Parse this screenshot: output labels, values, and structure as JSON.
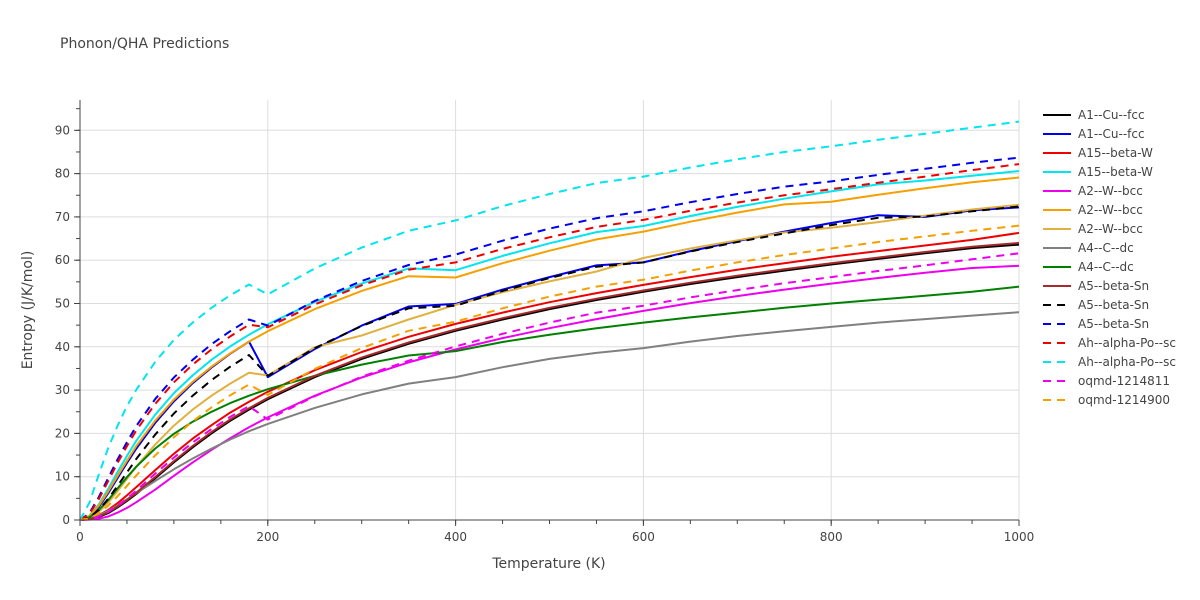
{
  "chart_data": {
    "type": "line",
    "title": "Phonon/QHA Predictions",
    "xlabel": "Temperature (K)",
    "ylabel": "Entropy (J/K/mol)",
    "xlim": [
      0,
      1000
    ],
    "ylim": [
      0,
      97
    ],
    "xticks": [
      0,
      200,
      400,
      600,
      800,
      1000
    ],
    "yticks": [
      0,
      10,
      20,
      30,
      40,
      50,
      60,
      70,
      80,
      90
    ],
    "grid": true,
    "legend_position": "right",
    "x": [
      0,
      10,
      20,
      30,
      40,
      50,
      60,
      80,
      100,
      120,
      140,
      160,
      180,
      200,
      250,
      300,
      350,
      400,
      450,
      500,
      550,
      600,
      650,
      700,
      750,
      800,
      850,
      900,
      950,
      1000
    ],
    "series": [
      {
        "name": "A1--Cu--fcc",
        "color": "#000000",
        "dash": "solid",
        "values": [
          0,
          0.2,
          0.7,
          1.6,
          2.9,
          4.4,
          6.0,
          9.6,
          13.3,
          16.8,
          20.0,
          22.9,
          25.5,
          27.9,
          33.0,
          37.2,
          40.7,
          43.7,
          46.3,
          48.7,
          50.8,
          52.7,
          54.5,
          56.1,
          57.6,
          59.0,
          60.3,
          61.6,
          62.8,
          63.6
        ]
      },
      {
        "name": "A1--Cu--fcc",
        "color": "#0000ee",
        "dash": "solid",
        "values": [
          0,
          0.8,
          3.0,
          6.2,
          9.7,
          13.2,
          16.5,
          22.4,
          27.4,
          31.6,
          35.2,
          38.4,
          41.2,
          33.0,
          39.5,
          44.9,
          49.3,
          49.9,
          53.2,
          56.1,
          58.8,
          59.5,
          62.1,
          64.4,
          66.6,
          68.6,
          70.4,
          70.0,
          71.5,
          72.2
        ]
      },
      {
        "name": "A15--beta-W",
        "color": "#ee0000",
        "dash": "solid",
        "values": [
          0,
          0.3,
          1.1,
          2.3,
          3.9,
          5.7,
          7.6,
          11.5,
          15.3,
          18.8,
          21.9,
          24.8,
          27.3,
          29.6,
          34.6,
          38.8,
          42.3,
          45.3,
          47.9,
          50.3,
          52.4,
          54.3,
          56.1,
          57.8,
          59.3,
          60.8,
          62.1,
          63.4,
          64.7,
          66.3
        ]
      },
      {
        "name": "A15--beta-W",
        "color": "#00e5ee",
        "dash": "solid",
        "values": [
          0,
          1.0,
          3.6,
          7.2,
          11.1,
          14.8,
          18.3,
          24.3,
          29.3,
          33.4,
          37.0,
          40.1,
          42.8,
          45.2,
          50.4,
          54.6,
          58.1,
          57.7,
          61.0,
          63.9,
          66.5,
          67.9,
          70.2,
          72.3,
          74.2,
          75.9,
          77.5,
          78.4,
          79.5,
          80.6
        ]
      },
      {
        "name": "A2--W--bcc",
        "color": "#ee00ee",
        "dash": "solid",
        "values": [
          0,
          0.1,
          0.3,
          0.8,
          1.7,
          2.8,
          4.1,
          7.0,
          10.2,
          13.3,
          16.2,
          18.9,
          21.4,
          23.7,
          28.7,
          32.9,
          36.4,
          39.4,
          42.0,
          44.3,
          46.4,
          48.3,
          50.1,
          51.7,
          53.2,
          54.6,
          55.9,
          57.1,
          58.2,
          58.7
        ]
      },
      {
        "name": "A2--W--bcc",
        "color": "#f5a000",
        "dash": "solid",
        "values": [
          0,
          0.9,
          3.3,
          6.6,
          10.2,
          13.7,
          17.1,
          22.9,
          27.8,
          31.9,
          35.4,
          38.5,
          41.2,
          43.6,
          48.7,
          52.9,
          56.3,
          56.0,
          59.3,
          62.2,
          64.8,
          66.6,
          68.9,
          71.0,
          72.9,
          73.5,
          75.1,
          76.6,
          78.0,
          79.1
        ]
      },
      {
        "name": "A2--W--bcc",
        "color": "#e0b040",
        "dash": "solid",
        "values": [
          0,
          0.5,
          1.9,
          4.0,
          6.7,
          9.5,
          12.3,
          17.4,
          21.8,
          25.5,
          28.7,
          31.5,
          34.0,
          33.4,
          39.9,
          42.6,
          46.3,
          49.7,
          52.6,
          55.1,
          57.4,
          60.5,
          62.7,
          64.6,
          66.4,
          67.5,
          68.8,
          70.3,
          71.7,
          72.8
        ]
      },
      {
        "name": "A4--C--dc",
        "color": "#808080",
        "dash": "solid",
        "values": [
          0,
          0.3,
          1.0,
          2.1,
          3.4,
          4.8,
          6.2,
          9.0,
          11.7,
          14.2,
          16.5,
          18.6,
          20.5,
          22.2,
          25.9,
          29.0,
          31.5,
          33.0,
          35.3,
          37.2,
          38.6,
          39.7,
          41.2,
          42.5,
          43.6,
          44.6,
          45.6,
          46.4,
          47.2,
          48.0
        ]
      },
      {
        "name": "A4--C--dc",
        "color": "#008000",
        "dash": "solid",
        "values": [
          0,
          0.6,
          2.3,
          4.6,
          7.3,
          9.9,
          12.3,
          16.5,
          19.9,
          22.7,
          25.0,
          27.0,
          28.7,
          30.2,
          33.3,
          35.9,
          38.0,
          39.0,
          41.1,
          42.8,
          44.3,
          45.6,
          46.8,
          47.9,
          49.0,
          50.0,
          50.9,
          51.8,
          52.7,
          53.9
        ]
      },
      {
        "name": "A5--beta-Sn",
        "color": "#a52a2a",
        "dash": "solid",
        "values": [
          0,
          0.2,
          0.8,
          1.8,
          3.1,
          4.6,
          6.3,
          9.9,
          13.6,
          17.1,
          20.3,
          23.2,
          25.8,
          28.2,
          33.3,
          37.5,
          41.0,
          44.0,
          46.6,
          49.0,
          51.1,
          53.0,
          54.8,
          56.4,
          57.9,
          59.3,
          60.6,
          61.9,
          63.1,
          64.0
        ]
      },
      {
        "name": "A5--beta-Sn",
        "color": "#000000",
        "dash": "dash",
        "values": [
          0,
          0.6,
          2.3,
          4.9,
          7.9,
          11.0,
          14.1,
          19.7,
          24.6,
          28.7,
          32.3,
          35.4,
          38.1,
          33.3,
          39.7,
          44.8,
          48.9,
          49.5,
          52.9,
          55.9,
          58.5,
          59.5,
          62.0,
          64.2,
          66.2,
          68.1,
          69.8,
          70.1,
          71.3,
          72.4
        ]
      },
      {
        "name": "A5--beta-Sn",
        "color": "#0000ee",
        "dash": "dash",
        "values": [
          0,
          1.6,
          5.3,
          9.7,
          14.0,
          18.0,
          21.7,
          27.9,
          32.9,
          37.0,
          40.6,
          43.6,
          46.3,
          44.9,
          50.6,
          55.2,
          58.9,
          61.3,
          64.5,
          67.3,
          69.7,
          71.3,
          73.4,
          75.3,
          77.0,
          78.2,
          79.7,
          81.1,
          82.5,
          83.7
        ]
      },
      {
        "name": "Ah--alpha-Po--sc",
        "color": "#ee0000",
        "dash": "dash",
        "values": [
          0,
          1.4,
          4.8,
          9.0,
          13.2,
          17.1,
          20.7,
          26.8,
          31.8,
          35.9,
          39.4,
          42.4,
          45.1,
          44.5,
          49.8,
          54.2,
          57.8,
          59.5,
          62.6,
          65.3,
          67.7,
          69.3,
          71.4,
          73.3,
          75.0,
          76.4,
          77.9,
          79.3,
          80.8,
          82.2
        ]
      },
      {
        "name": "Ah--alpha-Po--sc",
        "color": "#00e5ee",
        "dash": "dash",
        "values": [
          0,
          4.0,
          10.5,
          16.6,
          21.8,
          26.3,
          30.1,
          36.5,
          41.6,
          45.6,
          49.0,
          51.9,
          54.4,
          52.1,
          58.1,
          62.9,
          66.8,
          69.2,
          72.5,
          75.3,
          77.8,
          79.3,
          81.4,
          83.3,
          85.0,
          86.3,
          87.8,
          89.2,
          90.6,
          92.0
        ]
      },
      {
        "name": "oqmd-1214811",
        "color": "#ee00ee",
        "dash": "dash",
        "values": [
          0,
          0.2,
          0.8,
          1.9,
          3.3,
          5.0,
          6.8,
          10.7,
          14.4,
          17.9,
          21.0,
          23.8,
          26.3,
          23.2,
          28.6,
          33.1,
          36.8,
          40.1,
          43.0,
          45.6,
          47.9,
          49.5,
          51.4,
          53.1,
          54.7,
          56.1,
          57.5,
          58.8,
          60.2,
          61.6
        ]
      },
      {
        "name": "oqmd-1214900",
        "color": "#f5a000",
        "dash": "dash",
        "values": [
          0,
          0.4,
          1.5,
          3.3,
          5.5,
          7.9,
          10.3,
          14.9,
          19.1,
          22.8,
          26.0,
          28.8,
          31.3,
          28.9,
          34.9,
          39.7,
          43.7,
          45.8,
          48.9,
          51.6,
          53.9,
          55.5,
          57.6,
          59.5,
          61.2,
          62.7,
          64.2,
          65.5,
          66.8,
          68.0
        ]
      }
    ]
  }
}
